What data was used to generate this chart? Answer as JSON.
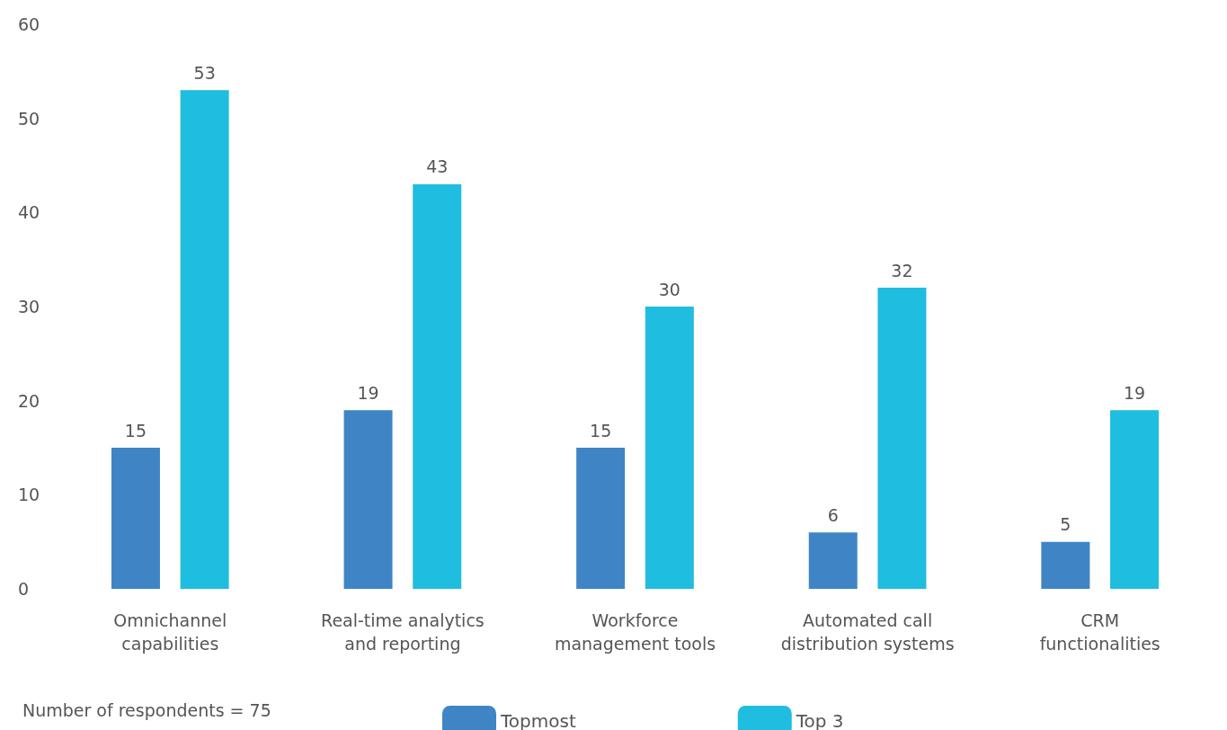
{
  "chart_data": {
    "type": "bar",
    "categories": [
      "Omnichannel\ncapabilities",
      "Real-time analytics\nand reporting",
      "Workforce\nmanagement tools",
      "Automated call\ndistribution systems",
      "CRM\nfunctionalities"
    ],
    "series": [
      {
        "name": "Topmost",
        "color": "#3f85c6",
        "values": [
          15,
          19,
          15,
          6,
          5
        ]
      },
      {
        "name": "Top 3",
        "color": "#1fbddf",
        "values": [
          53,
          43,
          30,
          32,
          19
        ]
      }
    ],
    "ylim": [
      0,
      60
    ],
    "yticks": [
      0,
      10,
      20,
      30,
      40,
      50,
      60
    ],
    "grid": false,
    "legend": "bottom",
    "data_labels": true,
    "annotations": [
      "Number of respondents = 75"
    ]
  }
}
